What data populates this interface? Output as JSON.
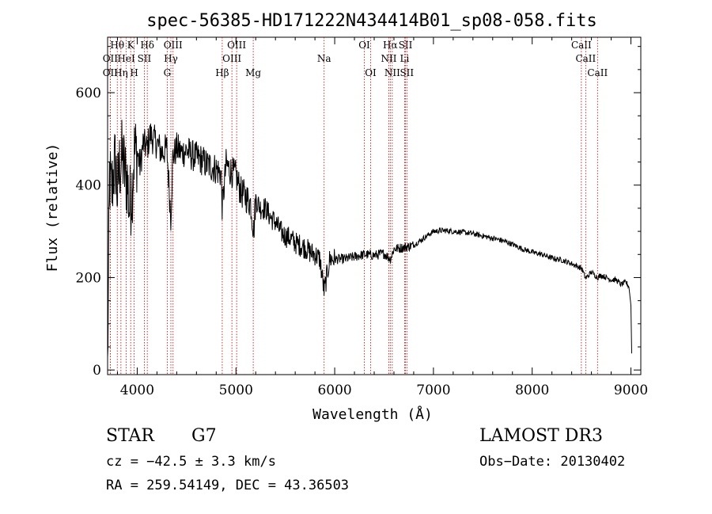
{
  "chart_data": {
    "type": "line",
    "title": "spec-56385-HD171222N434414B01_sp08-058.fits",
    "xlabel": "Wavelength (Å)",
    "ylabel": "Flux (relative)",
    "xlim": [
      3700,
      9100
    ],
    "ylim": [
      -10,
      720
    ],
    "xticks": [
      "4000",
      "5000",
      "6000",
      "7000",
      "8000",
      "9000"
    ],
    "xtick_values": [
      4000,
      5000,
      6000,
      7000,
      8000,
      9000
    ],
    "yticks": [
      "0",
      "200",
      "400",
      "600"
    ],
    "ytick_values": [
      0,
      200,
      400,
      600
    ],
    "grid": false,
    "series": [
      {
        "name": "flux",
        "x": [
          3700,
          3720,
          3740,
          3760,
          3780,
          3800,
          3820,
          3850,
          3880,
          3900,
          3920,
          3950,
          3970,
          4000,
          4030,
          4060,
          4100,
          4130,
          4160,
          4200,
          4250,
          4300,
          4340,
          4360,
          4400,
          4450,
          4500,
          4550,
          4600,
          4650,
          4700,
          4750,
          4800,
          4850,
          4861,
          4900,
          4950,
          5000,
          5050,
          5100,
          5150,
          5180,
          5200,
          5250,
          5300,
          5350,
          5400,
          5450,
          5500,
          5550,
          5600,
          5650,
          5700,
          5750,
          5800,
          5850,
          5893,
          5950,
          6000,
          6100,
          6200,
          6300,
          6400,
          6500,
          6563,
          6600,
          6700,
          6800,
          6900,
          7000,
          7100,
          7200,
          7300,
          7400,
          7500,
          7600,
          7700,
          7800,
          7900,
          8000,
          8100,
          8200,
          8300,
          8400,
          8500,
          8542,
          8600,
          8662,
          8700,
          8800,
          8850,
          8900,
          8950,
          8980,
          9000,
          9010
        ],
        "values": [
          0,
          420,
          380,
          430,
          450,
          380,
          440,
          460,
          420,
          410,
          350,
          400,
          470,
          470,
          440,
          490,
          480,
          510,
          500,
          490,
          470,
          480,
          330,
          460,
          480,
          470,
          475,
          465,
          460,
          455,
          445,
          440,
          435,
          425,
          350,
          445,
          430,
          420,
          385,
          375,
          360,
          300,
          370,
          350,
          350,
          330,
          320,
          300,
          290,
          285,
          275,
          270,
          265,
          255,
          250,
          240,
          170,
          240,
          240,
          240,
          245,
          250,
          248,
          252,
          240,
          262,
          265,
          270,
          285,
          300,
          302,
          300,
          298,
          295,
          290,
          285,
          280,
          272,
          262,
          255,
          250,
          242,
          238,
          230,
          220,
          198,
          212,
          200,
          205,
          195,
          195,
          185,
          190,
          180,
          140,
          10
        ]
      }
    ],
    "lines": [
      {
        "label": "Hθ",
        "x": 3798,
        "row": 0
      },
      {
        "label": "OII",
        "x": 3727,
        "row": 1
      },
      {
        "label": "OII",
        "x": 3727,
        "row": 2
      },
      {
        "label": "Hη",
        "x": 3835,
        "row": 2
      },
      {
        "label": "HeI",
        "x": 3889,
        "row": 1
      },
      {
        "label": "K",
        "x": 3934,
        "row": 0
      },
      {
        "label": "H",
        "x": 3969,
        "row": 2
      },
      {
        "label": "SII",
        "x": 4072,
        "row": 1
      },
      {
        "label": "Hδ",
        "x": 4102,
        "row": 0
      },
      {
        "label": "OIII",
        "x": 4363,
        "row": 0
      },
      {
        "label": "Hγ",
        "x": 4341,
        "row": 1
      },
      {
        "label": "G",
        "x": 4304,
        "row": 2
      },
      {
        "label": "Hβ",
        "x": 4861,
        "row": 2
      },
      {
        "label": "OIII",
        "x": 5007,
        "row": 0
      },
      {
        "label": "OIII",
        "x": 4959,
        "row": 1
      },
      {
        "label": "Mg",
        "x": 5175,
        "row": 2
      },
      {
        "label": "Na",
        "x": 5893,
        "row": 1
      },
      {
        "label": "OI",
        "x": 6300,
        "row": 0
      },
      {
        "label": "OI",
        "x": 6364,
        "row": 2
      },
      {
        "label": "Hα",
        "x": 6563,
        "row": 0
      },
      {
        "label": "NII",
        "x": 6548,
        "row": 1
      },
      {
        "label": "NII",
        "x": 6583,
        "row": 2
      },
      {
        "label": "SII",
        "x": 6717,
        "row": 0
      },
      {
        "label": "Li",
        "x": 6708,
        "row": 1
      },
      {
        "label": "SII",
        "x": 6731,
        "row": 2
      },
      {
        "label": "CaII",
        "x": 8498,
        "row": 0
      },
      {
        "label": "CaII",
        "x": 8542,
        "row": 1
      },
      {
        "label": "CaII",
        "x": 8662,
        "row": 2
      }
    ]
  },
  "info": {
    "class_label": "STAR",
    "subclass": "G7",
    "survey": "LAMOST DR3",
    "cz": "cz = −42.5 ± 3.3 km/s",
    "obs_date": "Obs−Date: 20130402",
    "coords": "RA = 259.54149, DEC =  43.36503"
  }
}
